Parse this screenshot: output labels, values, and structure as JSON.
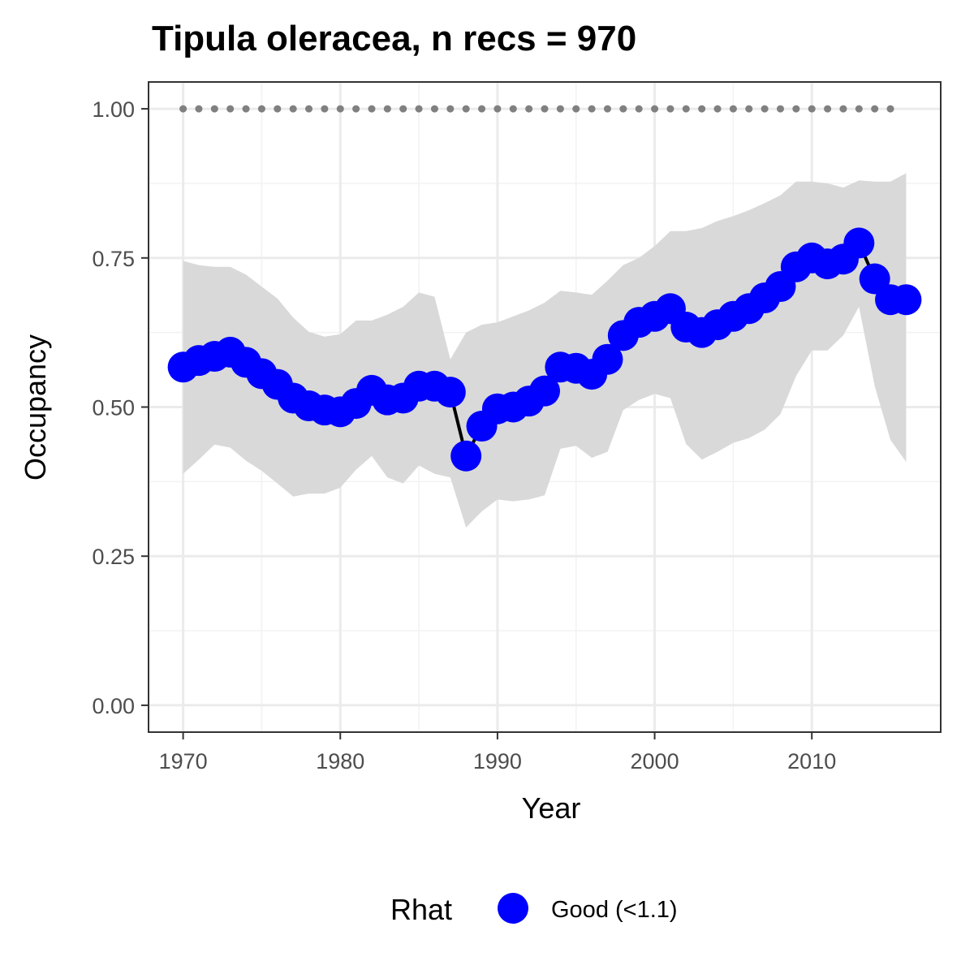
{
  "chart_data": {
    "type": "line",
    "title": "Tipula oleracea, n recs = 970",
    "xlabel": "Year",
    "ylabel": "Occupancy",
    "xlim": [
      1967.8,
      2018.2
    ],
    "ylim": [
      -0.045,
      1.045
    ],
    "x_ticks": [
      1970,
      1980,
      1990,
      2000,
      2010
    ],
    "y_ticks": [
      0.0,
      0.25,
      0.5,
      0.75,
      1.0
    ],
    "y_tick_labels": [
      "0.00",
      "0.25",
      "0.50",
      "0.75",
      "1.00"
    ],
    "grid": true,
    "legend": {
      "title": "Rhat",
      "position": "bottom",
      "entries": [
        {
          "label": "Good (<1.1)",
          "color": "#0000ff"
        }
      ]
    },
    "series": [
      {
        "x": [
          1970,
          1971,
          1972,
          1973,
          1974,
          1975,
          1976,
          1977,
          1978,
          1979,
          1980,
          1981,
          1982,
          1983,
          1984,
          1985,
          1986,
          1987,
          1988,
          1989,
          1990,
          1991,
          1992,
          1993,
          1994,
          1995,
          1996,
          1997,
          1998,
          1999,
          2000,
          2001,
          2002,
          2003,
          2004,
          2005,
          2006,
          2007,
          2008,
          2009,
          2010,
          2011,
          2012,
          2013,
          2014,
          2015,
          2016
        ],
        "y": [
          0.567,
          0.578,
          0.585,
          0.592,
          0.575,
          0.556,
          0.538,
          0.515,
          0.502,
          0.495,
          0.492,
          0.506,
          0.528,
          0.512,
          0.515,
          0.535,
          0.535,
          0.525,
          0.418,
          0.468,
          0.497,
          0.5,
          0.51,
          0.527,
          0.567,
          0.565,
          0.555,
          0.58,
          0.62,
          0.642,
          0.652,
          0.665,
          0.634,
          0.625,
          0.638,
          0.652,
          0.665,
          0.683,
          0.702,
          0.735,
          0.75,
          0.74,
          0.748,
          0.775,
          0.715,
          0.68,
          0.68
        ],
        "lower": [
          0.388,
          0.412,
          0.437,
          0.432,
          0.41,
          0.393,
          0.372,
          0.35,
          0.355,
          0.355,
          0.365,
          0.395,
          0.418,
          0.382,
          0.372,
          0.402,
          0.388,
          0.382,
          0.298,
          0.325,
          0.345,
          0.342,
          0.345,
          0.352,
          0.43,
          0.435,
          0.415,
          0.425,
          0.495,
          0.512,
          0.522,
          0.515,
          0.438,
          0.412,
          0.425,
          0.44,
          0.448,
          0.462,
          0.488,
          0.552,
          0.595,
          0.595,
          0.62,
          0.668,
          0.535,
          0.445,
          0.408
        ],
        "upper": [
          0.745,
          0.738,
          0.735,
          0.735,
          0.722,
          0.702,
          0.682,
          0.65,
          0.626,
          0.618,
          0.622,
          0.645,
          0.645,
          0.655,
          0.668,
          0.692,
          0.685,
          0.58,
          0.625,
          0.638,
          0.642,
          0.652,
          0.662,
          0.675,
          0.695,
          0.692,
          0.688,
          0.712,
          0.738,
          0.75,
          0.77,
          0.795,
          0.795,
          0.8,
          0.812,
          0.82,
          0.83,
          0.842,
          0.855,
          0.878,
          0.878,
          0.875,
          0.868,
          0.88,
          0.878,
          0.878,
          0.892
        ],
        "color": "#0000ff",
        "band_color": "#d9d9d9",
        "line_color": "#000000"
      },
      {
        "x": [
          1970,
          1971,
          1972,
          1973,
          1974,
          1975,
          1976,
          1977,
          1978,
          1979,
          1980,
          1981,
          1982,
          1983,
          1984,
          1985,
          1986,
          1987,
          1988,
          1989,
          1990,
          1991,
          1992,
          1993,
          1994,
          1995,
          1996,
          1997,
          1998,
          1999,
          2000,
          2001,
          2002,
          2003,
          2004,
          2005,
          2006,
          2007,
          2008,
          2009,
          2010,
          2011,
          2012,
          2013,
          2014,
          2015
        ],
        "y": [
          1,
          1,
          1,
          1,
          1,
          1,
          1,
          1,
          1,
          1,
          1,
          1,
          1,
          1,
          1,
          1,
          1,
          1,
          1,
          1,
          1,
          1,
          1,
          1,
          1,
          1,
          1,
          1,
          1,
          1,
          1,
          1,
          1,
          1,
          1,
          1,
          1,
          1,
          1,
          1,
          1,
          1,
          1,
          1,
          1,
          1
        ],
        "color": "#808080"
      }
    ]
  }
}
